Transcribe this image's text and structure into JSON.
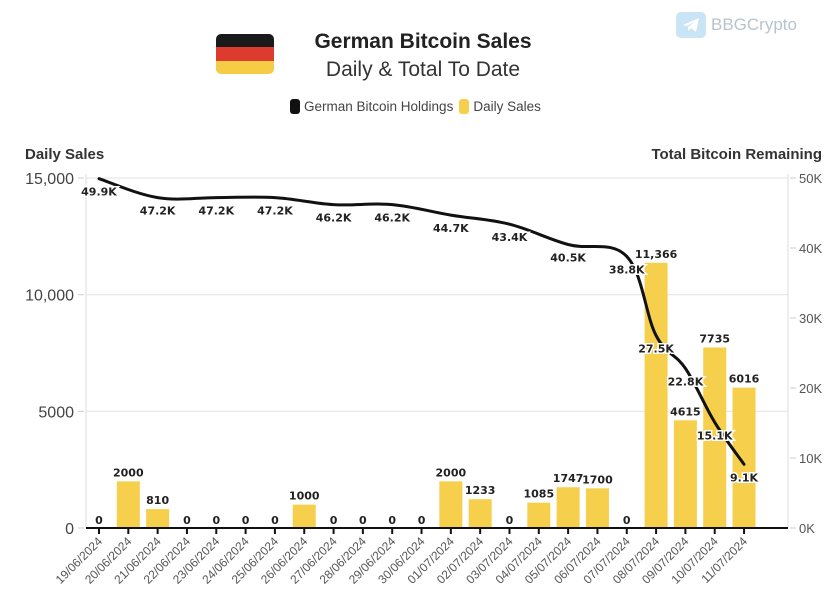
{
  "header": {
    "title": "German Bitcoin Sales",
    "subtitle": "Daily & Total To Date",
    "flag_colors": [
      "#1a1a1a",
      "#dd3b2e",
      "#f5cc45"
    ]
  },
  "watermark": {
    "label": "BBGCrypto",
    "icon": "telegram-icon"
  },
  "legend": [
    {
      "label": "German Bitcoin Holdings",
      "color": "#111111"
    },
    {
      "label": "Daily Sales",
      "color": "#f6cf4c"
    }
  ],
  "chart_data": {
    "type": "bar",
    "title": "German Bitcoin Sales",
    "subtitle": "Daily & Total To Date",
    "categories": [
      "19/06/2024",
      "20/06/2024",
      "21/06/2024",
      "22/06/2024",
      "23/06/2024",
      "24/06/2024",
      "25/06/2024",
      "26/06/2024",
      "27/06/2024",
      "28/06/2024",
      "29/06/2024",
      "30/06/2024",
      "01/07/2024",
      "02/07/2024",
      "03/07/2024",
      "04/07/2024",
      "05/07/2024",
      "06/07/2024",
      "07/07/2024",
      "08/07/2024",
      "09/07/2024",
      "10/07/2024",
      "11/07/2024"
    ],
    "series": [
      {
        "name": "Daily Sales",
        "type": "bar",
        "axis": "left",
        "color": "#f6cf4c",
        "values": [
          0,
          2000,
          810,
          0,
          0,
          0,
          0,
          1000,
          0,
          0,
          0,
          0,
          2000,
          1233,
          0,
          1085,
          1747,
          1700,
          0,
          11366,
          4615,
          7735,
          6016
        ],
        "labels": [
          "0",
          "2000",
          "810",
          "0",
          "0",
          "0",
          "0",
          "1000",
          "0",
          "0",
          "0",
          "0",
          "2000",
          "1233",
          "0",
          "1085",
          "1747",
          "1700",
          "0",
          "11,366",
          "4615",
          "7735",
          "6016"
        ]
      },
      {
        "name": "German Bitcoin Holdings",
        "type": "line",
        "axis": "right",
        "color": "#111111",
        "points": [
          {
            "x": "19/06/2024",
            "value": 49900,
            "label": "49.9K"
          },
          {
            "x": "21/06/2024",
            "value": 47200,
            "label": "47.2K"
          },
          {
            "x": "23/06/2024",
            "value": 47200,
            "label": "47.2K"
          },
          {
            "x": "25/06/2024",
            "value": 47200,
            "label": "47.2K"
          },
          {
            "x": "27/06/2024",
            "value": 46200,
            "label": "46.2K"
          },
          {
            "x": "29/06/2024",
            "value": 46200,
            "label": "46.2K"
          },
          {
            "x": "01/07/2024",
            "value": 44700,
            "label": "44.7K"
          },
          {
            "x": "03/07/2024",
            "value": 43400,
            "label": "43.4K"
          },
          {
            "x": "05/07/2024",
            "value": 40500,
            "label": "40.5K"
          },
          {
            "x": "07/07/2024",
            "value": 38800,
            "label": "38.8K"
          },
          {
            "x": "08/07/2024",
            "value": 27500,
            "label": "27.5K"
          },
          {
            "x": "09/07/2024",
            "value": 22800,
            "label": "22.8K"
          },
          {
            "x": "10/07/2024",
            "value": 15100,
            "label": "15.1K"
          },
          {
            "x": "11/07/2024",
            "value": 9100,
            "label": "9.1K"
          }
        ]
      }
    ],
    "ylabel_left": "Daily Sales",
    "ylabel_right": "Total Bitcoin Remaining",
    "ylim_left": [
      0,
      15000
    ],
    "ylim_right": [
      0,
      50000
    ],
    "yticks_left": [
      0,
      5000,
      10000,
      15000
    ],
    "yticks_left_labels": [
      "0",
      "5000",
      "10,000",
      "15,000"
    ],
    "yticks_right": [
      0,
      10000,
      20000,
      30000,
      40000,
      50000
    ],
    "yticks_right_labels": [
      "0K",
      "10K",
      "20K",
      "30K",
      "40K",
      "50K"
    ],
    "grid": true,
    "legend_position": "top-center"
  }
}
